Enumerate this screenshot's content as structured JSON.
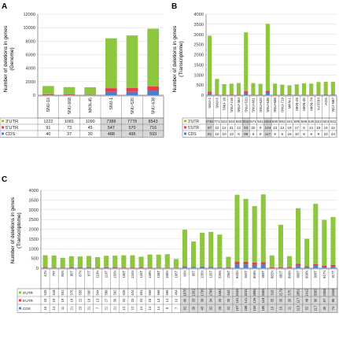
{
  "colors": {
    "utr3": "#8dc63f",
    "utr5": "#e0404a",
    "cds": "#4a7fd4",
    "axis": "#555555",
    "grid": "#d9d9d9"
  },
  "legend_labels": [
    "3'UTR",
    "5'UTR",
    "CDS"
  ],
  "panels": {
    "A": {
      "letter": "A",
      "ylabel_1": "Number of deletions in genes",
      "ylabel_2": "(Genome)"
    },
    "B": {
      "letter": "B",
      "ylabel_1": "Number of deletions in genes",
      "ylabel_2": "(Transcriptome)"
    },
    "C": {
      "letter": "C",
      "ylabel_1": "Number of deletions  in genes",
      "ylabel_2": "(Transcriptome)"
    }
  },
  "chart_data": [
    {
      "panel": "A",
      "type": "bar",
      "stacked": true,
      "categories": [
        "SNU-16",
        "SNU-668",
        "MKN-45",
        "SNU-1",
        "SNU-520",
        "SNU-638"
      ],
      "series": [
        {
          "name": "3'UTR",
          "values": [
            1222,
            1081,
            1090,
            7388,
            7778,
            8543
          ]
        },
        {
          "name": "5'UTR",
          "values": [
            91,
            73,
            45,
            547,
            570,
            716
          ]
        },
        {
          "name": "CDS",
          "values": [
            40,
            37,
            30,
            488,
            495,
            593
          ]
        }
      ],
      "ylim": [
        0,
        12000
      ],
      "yticks": [
        0,
        2000,
        4000,
        6000,
        8000,
        10000,
        12000
      ],
      "highlight": [
        3,
        4,
        5
      ],
      "ylabel": "Number of deletions in genes (Genome)"
    },
    {
      "panel": "B",
      "type": "bar",
      "stacked": true,
      "categories": [
        "SNU-1",
        "SNU-5",
        "SNU-16",
        "SNU-216",
        "SNU-484",
        "SNU-520",
        "SNU-601",
        "SNU-620",
        "SNU-638",
        "SNU-668",
        "SNU-719",
        "MKN-1",
        "MKN-28",
        "MKN-45",
        "MKN-74",
        "KATOIII",
        "AGS",
        "NCI-N87"
      ],
      "series": [
        {
          "name": "3'UTR",
          "values": [
            2763,
            771,
            522,
            533,
            582,
            2910,
            571,
            541,
            3304,
            550,
            502,
            441,
            505,
            566,
            545,
            622,
            623,
            621
          ]
        },
        {
          "name": "5'UTR",
          "values": [
            97,
            22,
            12,
            21,
            12,
            93,
            20,
            9,
            104,
            13,
            12,
            19,
            17,
            8,
            21,
            19,
            14,
            12
          ]
        },
        {
          "name": "CDS",
          "values": [
            81,
            10,
            10,
            13,
            6,
            98,
            6,
            9,
            117,
            8,
            5,
            16,
            10,
            8,
            6,
            9,
            23,
            24
          ]
        }
      ],
      "ylim": [
        0,
        4000
      ],
      "yticks": [
        0,
        500,
        1000,
        1500,
        2000,
        2500,
        3000,
        3500,
        4000
      ],
      "highlight": [
        0,
        5,
        8
      ],
      "ylabel": "Number of deletions in genes (Transcriptome)"
    },
    {
      "panel": "C",
      "type": "bar",
      "stacked": true,
      "categories": [
        "42N",
        "79T",
        "80N",
        "80T",
        "87N",
        "87T",
        "119N",
        "119T",
        "130N",
        "130T",
        "134N",
        "134T",
        "138N",
        "138T",
        "195N",
        "195T",
        "95N",
        "95T",
        "135N",
        "135T",
        "236N",
        "236T",
        "840N",
        "840T",
        "859N",
        "859T",
        "882N",
        "882T",
        "899N",
        "899T",
        "908N",
        "908T",
        "917N",
        "917T"
      ],
      "series": [
        {
          "name": "3'UTR",
          "values": [
            625,
            618,
            501,
            576,
            556,
            590,
            544,
            589,
            592,
            625,
            624,
            551,
            669,
            669,
            695,
            454,
            1876,
            1302,
            1736,
            1796,
            1682,
            542,
            3436,
            3231,
            2895,
            3486,
            610,
            2179,
            575,
            2851,
            1412,
            3095,
            2358,
            2458
          ]
        },
        {
          "name": "5'UTR",
          "values": [
            23,
            19,
            19,
            19,
            22,
            18,
            13,
            27,
            30,
            24,
            23,
            24,
            18,
            13,
            14,
            10,
            46,
            33,
            38,
            34,
            20,
            20,
            151,
            141,
            126,
            118,
            35,
            35,
            30,
            117,
            48,
            96,
            87,
            96
          ]
        },
        {
          "name": "CDS",
          "values": [
            16,
            14,
            11,
            21,
            23,
            21,
            7,
            21,
            21,
            12,
            12,
            14,
            14,
            14,
            9,
            7,
            52,
            36,
            45,
            32,
            25,
            22,
            187,
            188,
            166,
            185,
            10,
            16,
            11,
            113,
            52,
            117,
            35,
            74
          ]
        }
      ],
      "ylim": [
        0,
        4000
      ],
      "yticks": [
        0,
        500,
        1000,
        1500,
        2000,
        2500,
        3000,
        3500,
        4000
      ],
      "highlight": [
        16,
        17,
        18,
        19,
        20,
        21,
        22,
        23,
        24,
        25,
        26,
        27,
        28,
        29,
        30,
        31,
        32,
        33
      ],
      "ylabel": "Number of deletions  in genes (Transcriptome)"
    }
  ]
}
